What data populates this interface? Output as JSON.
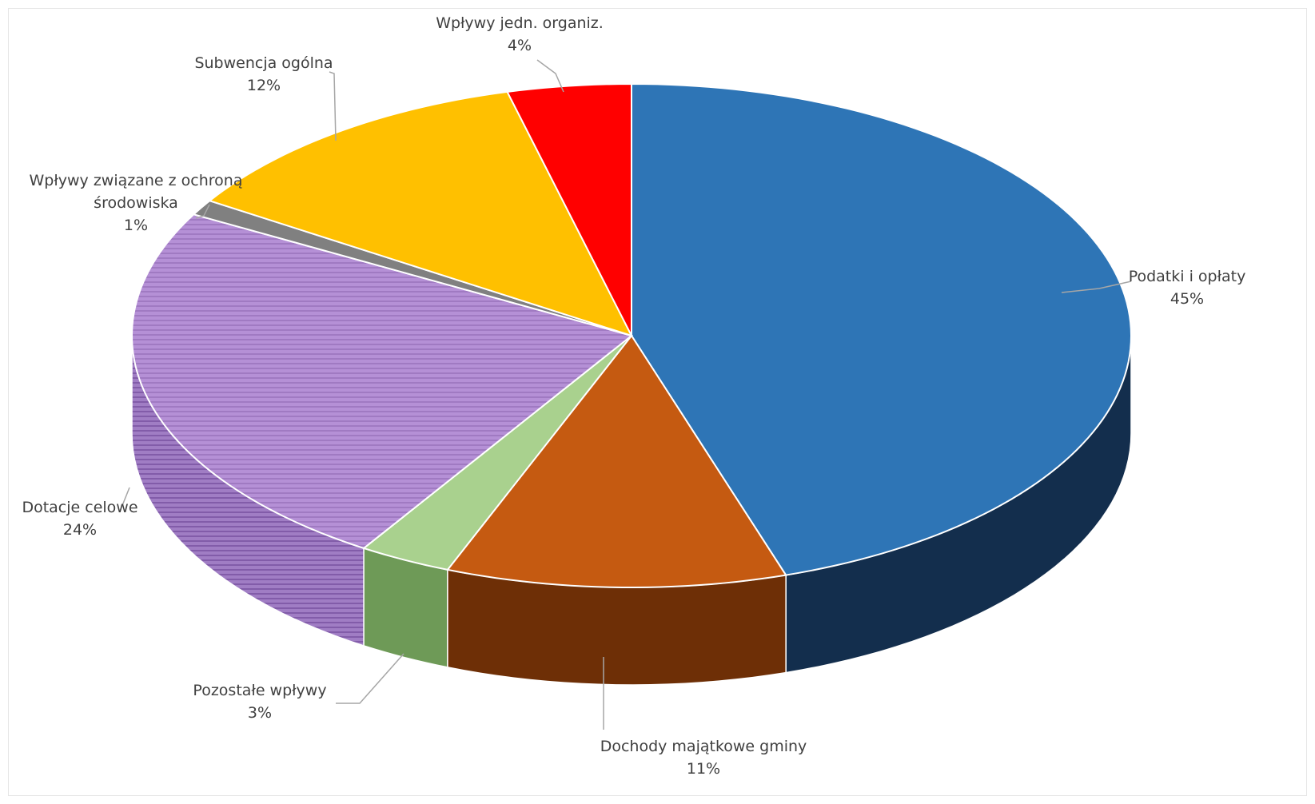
{
  "chart_data": {
    "type": "pie",
    "style": "3d",
    "unit": "%",
    "slices": [
      {
        "label": "Podatki i opłaty",
        "value": 45,
        "value_label": "45%",
        "color": "#2E75B6",
        "side_color": "#132E4D"
      },
      {
        "label": "Dochody  majątkowe gminy",
        "value": 11,
        "value_label": "11%",
        "color": "#C55A11",
        "side_color": "#6E2F06"
      },
      {
        "label": "Pozostałe wpływy",
        "value": 3,
        "value_label": "3%",
        "color": "#A9D18E",
        "side_color": "#6E9A57"
      },
      {
        "label": "Dotacje celowe",
        "value": 24,
        "value_label": "24%",
        "color": "#B08AD2",
        "side_color": "#8E64B4",
        "pattern": "horizontal-lines"
      },
      {
        "label": "Wpływy związane z ochroną środowiska",
        "label_lines": [
          "Wpływy związane z ochroną",
          "środowiska"
        ],
        "value": 1,
        "value_label": "1%",
        "color": "#808080",
        "side_color": "#555555"
      },
      {
        "label": "Subwencja ogólna",
        "value": 12,
        "value_label": "12%",
        "color": "#FFC000",
        "side_color": "#B38600"
      },
      {
        "label": "Wpływy jedn. organiz.",
        "value": 4,
        "value_label": "4%",
        "color": "#FF0000",
        "side_color": "#A00000"
      }
    ],
    "legend": "none",
    "title": ""
  }
}
